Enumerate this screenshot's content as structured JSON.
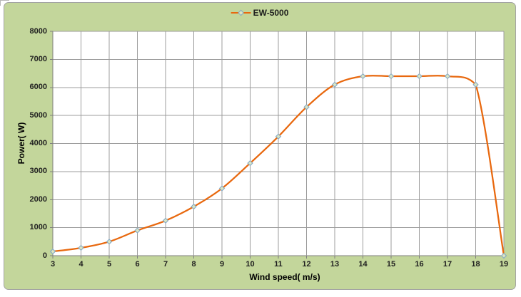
{
  "chart": {
    "legend_label": "EW-5000",
    "xlabel": "Wind speed( m/s)",
    "ylabel": "Power( W)"
  },
  "chart_data": {
    "type": "line",
    "title": "",
    "smooth": true,
    "grid": true,
    "legend_position": "top-center",
    "x": [
      3,
      4,
      5,
      6,
      7,
      8,
      9,
      10,
      11,
      12,
      13,
      14,
      15,
      16,
      17,
      18,
      19
    ],
    "series": [
      {
        "name": "EW-5000",
        "values": [
          150,
          280,
          500,
          900,
          1250,
          1750,
          2400,
          3300,
          4250,
          5300,
          6100,
          6400,
          6400,
          6400,
          6400,
          6100,
          0
        ]
      }
    ],
    "xlabel": "Wind speed( m/s)",
    "ylabel": "Power( W)",
    "xlim": [
      3,
      19
    ],
    "ylim": [
      0,
      8000
    ],
    "xticks": [
      3,
      4,
      5,
      6,
      7,
      8,
      9,
      10,
      11,
      12,
      13,
      14,
      15,
      16,
      17,
      18,
      19
    ],
    "yticks": [
      0,
      1000,
      2000,
      3000,
      4000,
      5000,
      6000,
      7000,
      8000
    ]
  },
  "colors": {
    "page_bg": "#ffffff",
    "chart_bg": "#c3d69b",
    "chart_border": "#a3a3a3",
    "plot_bg": "#ffffff",
    "gridline": "#9c9c9c",
    "axis_line": "#7f7f7f",
    "series_line": "#e8680e",
    "marker_fill": "#dde6c0",
    "marker_stroke": "#85a9c5",
    "label_text": "#1f1f1f"
  }
}
